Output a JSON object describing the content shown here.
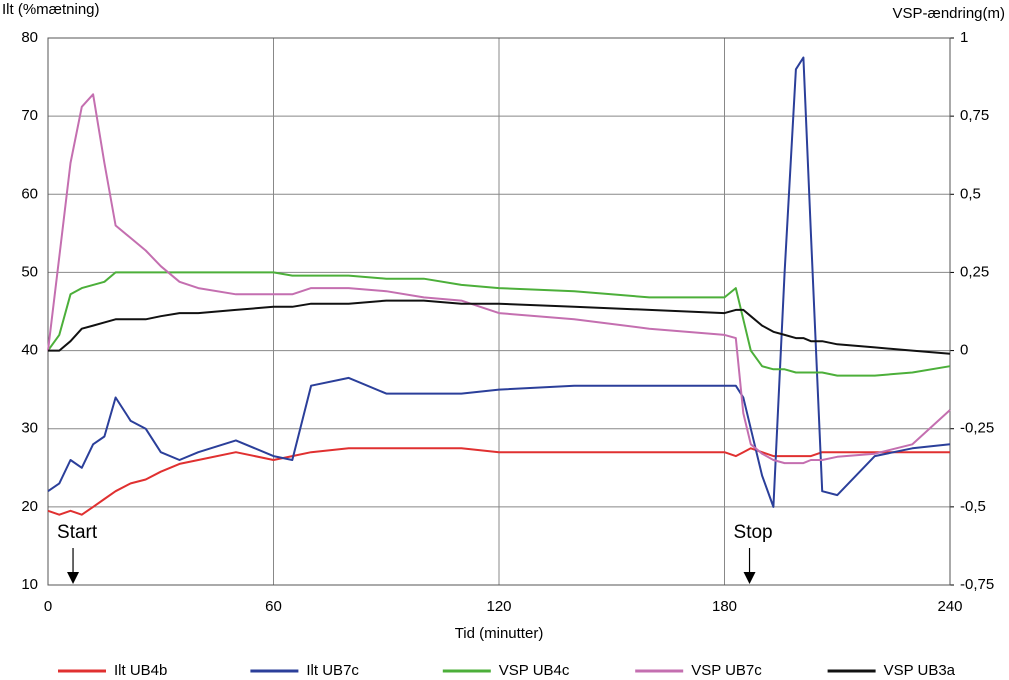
{
  "chart_data": {
    "type": "line",
    "y_label": "Ilt (%mætning)",
    "y2_label": "VSP-ændring(m)",
    "x_label": "Tid (minutter)",
    "xlim": [
      0,
      240
    ],
    "xticks": [
      0,
      60,
      120,
      180,
      240
    ],
    "ylim": [
      10,
      80
    ],
    "yticks": [
      10,
      20,
      30,
      40,
      50,
      60,
      70,
      80
    ],
    "y2lim": [
      -0.75,
      1
    ],
    "y2ticks": [
      {
        "value": -0.75,
        "label": "-0,75"
      },
      {
        "value": -0.5,
        "label": "-0,5"
      },
      {
        "value": -0.25,
        "label": "-0,25"
      },
      0,
      {
        "value": 0.25,
        "label": "0,25"
      },
      {
        "value": 0.5,
        "label": "0,5"
      },
      {
        "value": 0.75,
        "label": "0,75"
      },
      1
    ],
    "grid": true,
    "legend": "bottom",
    "annotations": [
      {
        "text": "Start",
        "x": 4
      },
      {
        "text": "Stop",
        "x": 184
      }
    ],
    "x": [
      0,
      3,
      6,
      9,
      12,
      15,
      18,
      22,
      26,
      30,
      35,
      40,
      50,
      60,
      65,
      70,
      80,
      90,
      100,
      110,
      120,
      140,
      160,
      180,
      183,
      185,
      187,
      190,
      193,
      196,
      199,
      201,
      203,
      206,
      210,
      220,
      230,
      240
    ],
    "series": [
      {
        "name": "Ilt UB4b",
        "color": "#e03030",
        "values": [
          19.5,
          19,
          19.5,
          19,
          20,
          21,
          22,
          23,
          23.5,
          24.5,
          25.5,
          26,
          27,
          26,
          26.5,
          27,
          27.5,
          27.5,
          27.5,
          27.5,
          27,
          27,
          27,
          27,
          26.5,
          27,
          27.5,
          27,
          26.5,
          26.5,
          26.5,
          26.5,
          26.5,
          27,
          27,
          27,
          27,
          27
        ]
      },
      {
        "name": "Ilt UB7c",
        "color": "#2b3f9a",
        "values": [
          22,
          23,
          26,
          25,
          28,
          29,
          34,
          31,
          30,
          27,
          26,
          27,
          28.5,
          26.5,
          26,
          35.5,
          36.5,
          34.5,
          34.5,
          34.5,
          35,
          35.5,
          35.5,
          35.5,
          35.5,
          34,
          30,
          24,
          20,
          50,
          76,
          77.5,
          55,
          22,
          21.5,
          26.5,
          27.5,
          28
        ]
      },
      {
        "name": "VSP UB4c",
        "color": "#4caf3a",
        "axis": "y2",
        "values": [
          0,
          0.05,
          0.18,
          0.2,
          0.21,
          0.22,
          0.25,
          0.25,
          0.25,
          0.25,
          0.25,
          0.25,
          0.25,
          0.25,
          0.24,
          0.24,
          0.24,
          0.23,
          0.23,
          0.21,
          0.2,
          0.19,
          0.17,
          0.17,
          0.2,
          0.1,
          0,
          -0.05,
          -0.06,
          -0.06,
          -0.07,
          -0.07,
          -0.07,
          -0.07,
          -0.08,
          -0.08,
          -0.07,
          -0.05
        ]
      },
      {
        "name": "VSP UB7c",
        "color": "#c46fb0",
        "axis": "y2",
        "values": [
          0,
          0.3,
          0.6,
          0.78,
          0.82,
          0.6,
          0.4,
          0.36,
          0.32,
          0.27,
          0.22,
          0.2,
          0.18,
          0.18,
          0.18,
          0.2,
          0.2,
          0.19,
          0.17,
          0.16,
          0.12,
          0.1,
          0.07,
          0.05,
          0.04,
          -0.2,
          -0.3,
          -0.33,
          -0.35,
          -0.36,
          -0.36,
          -0.36,
          -0.35,
          -0.35,
          -0.34,
          -0.33,
          -0.3,
          -0.19
        ]
      },
      {
        "name": "VSP UB3a",
        "color": "#111111",
        "axis": "y2",
        "values": [
          0,
          0,
          0.03,
          0.07,
          0.08,
          0.09,
          0.1,
          0.1,
          0.1,
          0.11,
          0.12,
          0.12,
          0.13,
          0.14,
          0.14,
          0.15,
          0.15,
          0.16,
          0.16,
          0.15,
          0.15,
          0.14,
          0.13,
          0.12,
          0.13,
          0.13,
          0.11,
          0.08,
          0.06,
          0.05,
          0.04,
          0.04,
          0.03,
          0.03,
          0.02,
          0.01,
          0,
          -0.01
        ]
      }
    ]
  }
}
